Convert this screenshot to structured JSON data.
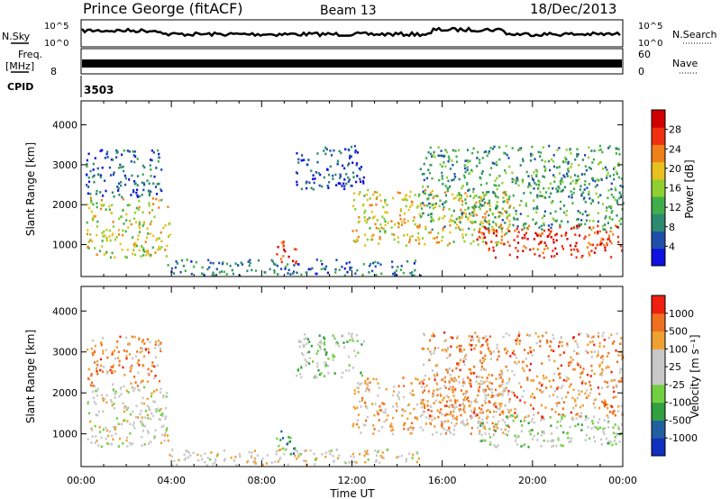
{
  "header": {
    "station": "Prince George (fitACF)",
    "beam": "Beam 13",
    "date": "18/Dec/2013"
  },
  "top_panels": {
    "nsky_label": "N.Sky",
    "nsky_ticks": [
      "10^5",
      "10^0"
    ],
    "nsearch_label": "N.Search",
    "nsearch_ticks": [
      "10^5",
      "10^0"
    ],
    "freq_label": "Freq.",
    "freq_unit": "[MHz]",
    "freq_tick": "8",
    "nave_label": "Nave",
    "nave_ticks": [
      "60",
      "0"
    ],
    "cpid_label": "CPID",
    "cpid_value": "3503"
  },
  "chart_data": [
    {
      "type": "heatmap",
      "name": "power",
      "ylabel": "Slant Range [km]",
      "yticks": [
        "1000",
        "2000",
        "3000",
        "4000"
      ],
      "ylim": [
        200,
        4600
      ],
      "xlim": [
        0,
        24
      ],
      "colorbar_label": "Power [dB]",
      "colorbar_ticks": [
        "28",
        "24",
        "20",
        "16",
        "12",
        "8",
        "4"
      ],
      "colors": [
        "#1010e0",
        "#1f4faa",
        "#2e8a6e",
        "#3fae4a",
        "#8fd030",
        "#e8c020",
        "#f08018",
        "#f03010",
        "#d00000"
      ],
      "regions": [
        {
          "t": [
            0.2,
            3.9
          ],
          "r": [
            700,
            2200
          ],
          "level": 0.55
        },
        {
          "t": [
            0.2,
            3.6
          ],
          "r": [
            2200,
            3400
          ],
          "level": 0.2
        },
        {
          "t": [
            3.8,
            15.0
          ],
          "r": [
            250,
            650
          ],
          "level": 0.25
        },
        {
          "t": [
            8.6,
            9.5
          ],
          "r": [
            500,
            1100
          ],
          "level": 0.8
        },
        {
          "t": [
            9.5,
            12.5
          ],
          "r": [
            2400,
            3500
          ],
          "level": 0.15
        },
        {
          "t": [
            12.0,
            19.0
          ],
          "r": [
            1000,
            2400
          ],
          "level": 0.6
        },
        {
          "t": [
            15.0,
            24.0
          ],
          "r": [
            1400,
            3500
          ],
          "level": 0.35
        },
        {
          "t": [
            17.5,
            24.0
          ],
          "r": [
            700,
            1500
          ],
          "level": 0.85
        }
      ]
    },
    {
      "type": "heatmap",
      "name": "velocity",
      "xlabel": "Time UT",
      "ylabel": "Slant Range [km]",
      "yticks": [
        "1000",
        "2000",
        "3000",
        "4000"
      ],
      "xticks": [
        "00:00",
        "04:00",
        "08:00",
        "12:00",
        "16:00",
        "20:00",
        "00:00"
      ],
      "ylim": [
        200,
        4600
      ],
      "xlim": [
        0,
        24
      ],
      "colorbar_label": "Velocity [m s^-1]",
      "colorbar_ticks": [
        "1000",
        "500",
        "100",
        "25",
        "-25",
        "-100",
        "-500",
        "-1000"
      ],
      "colors": [
        "#1030c0",
        "#2060a0",
        "#30a040",
        "#70d040",
        "#c8c8c8",
        "#c8c8c8",
        "#f0a030",
        "#f07020",
        "#f02010"
      ],
      "regions": [
        {
          "t": [
            0.2,
            3.9
          ],
          "r": [
            700,
            2200
          ],
          "level": 0.55
        },
        {
          "t": [
            0.2,
            3.6
          ],
          "r": [
            2200,
            3400
          ],
          "level": 0.75
        },
        {
          "t": [
            3.8,
            15.0
          ],
          "r": [
            250,
            650
          ],
          "level": 0.6
        },
        {
          "t": [
            8.6,
            9.5
          ],
          "r": [
            500,
            1100
          ],
          "level": 0.3
        },
        {
          "t": [
            9.5,
            12.5
          ],
          "r": [
            2400,
            3500
          ],
          "level": 0.45
        },
        {
          "t": [
            12.0,
            19.0
          ],
          "r": [
            1000,
            2400
          ],
          "level": 0.7
        },
        {
          "t": [
            15.0,
            24.0
          ],
          "r": [
            1400,
            3500
          ],
          "level": 0.75
        },
        {
          "t": [
            17.5,
            24.0
          ],
          "r": [
            700,
            1500
          ],
          "level": 0.47
        }
      ]
    }
  ]
}
